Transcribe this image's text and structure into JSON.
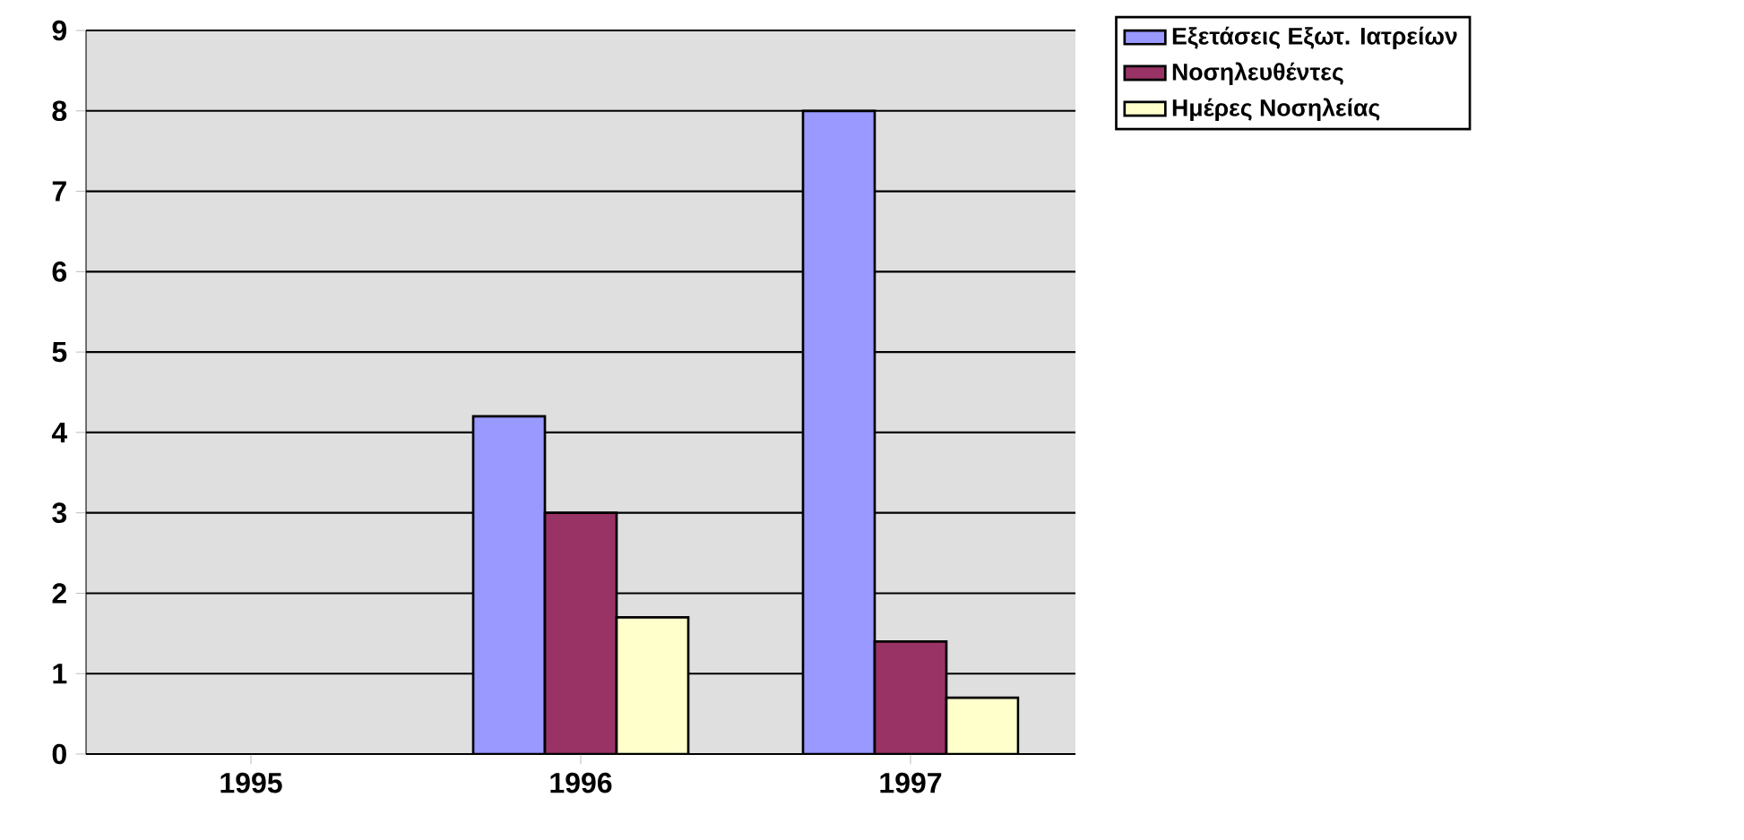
{
  "chart_data": {
    "type": "bar",
    "categories": [
      "1995",
      "1996",
      "1997"
    ],
    "series": [
      {
        "name": "Εξετάσεις Εξωτ. Ιατρείων",
        "color": "#9999ff",
        "values": [
          null,
          4.2,
          8.0
        ]
      },
      {
        "name": "Νοσηλευθέντες",
        "color": "#993366",
        "values": [
          null,
          3.0,
          1.4
        ]
      },
      {
        "name": "Ημέρες Νοσηλείας",
        "color": "#ffffcc",
        "values": [
          null,
          1.7,
          0.7
        ]
      }
    ],
    "ylim": [
      0,
      9
    ],
    "yticks": [
      0,
      1,
      2,
      3,
      4,
      5,
      6,
      7,
      8,
      9
    ],
    "grid": "y",
    "legend": "top right"
  }
}
